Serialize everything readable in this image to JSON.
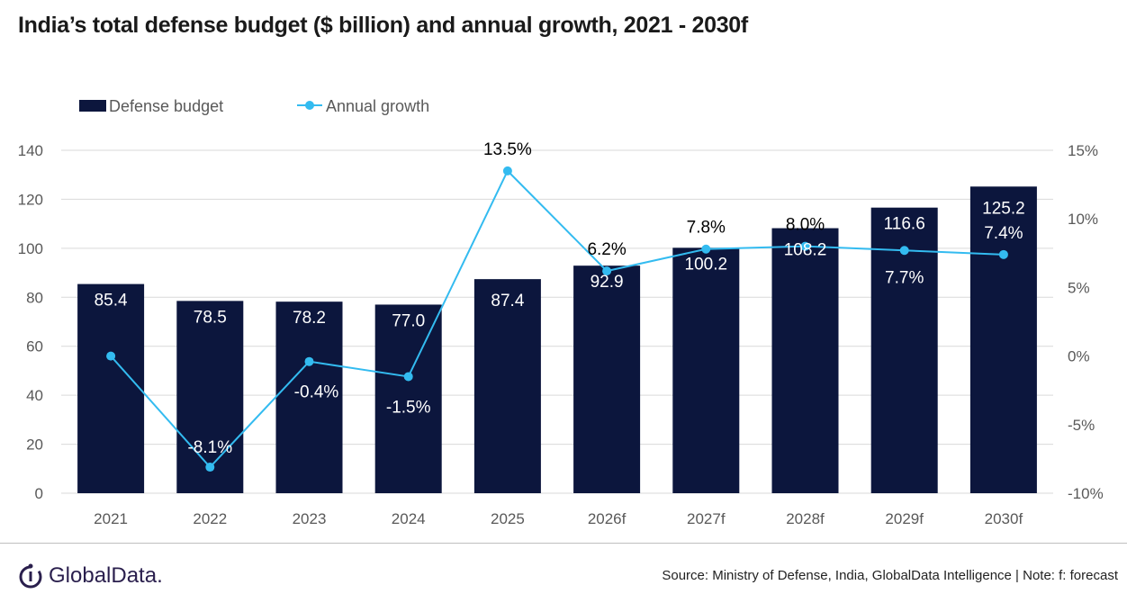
{
  "title": "India’s total defense budget ($ billion) and annual growth, 2021 - 2030f",
  "footer": {
    "logo_text": "GlobalData.",
    "source": "Source: Ministry of Defense, India, GlobalData Intelligence | Note: f: forecast"
  },
  "colors": {
    "bar": "#0c163d",
    "line": "#33bbf0",
    "grid": "#d9d9d9",
    "axis_text": "#595959"
  },
  "chart_data": {
    "type": "bar+line",
    "title": "India’s total defense budget ($ billion) and annual growth, 2021 - 2030f",
    "categories": [
      "2021",
      "2022",
      "2023",
      "2024",
      "2025",
      "2026f",
      "2027f",
      "2028f",
      "2029f",
      "2030f"
    ],
    "series": [
      {
        "name": "Defense budget",
        "type": "bar",
        "axis": "left",
        "values": [
          85.4,
          78.5,
          78.2,
          77.0,
          87.4,
          92.9,
          100.2,
          108.2,
          116.6,
          125.2
        ],
        "labels": [
          "85.4",
          "78.5",
          "78.2",
          "77.0",
          "87.4",
          "92.9",
          "100.2",
          "108.2",
          "116.6",
          "125.2"
        ]
      },
      {
        "name": "Annual growth",
        "type": "line",
        "axis": "right",
        "values": [
          0.0,
          -8.1,
          -0.4,
          -1.5,
          13.5,
          6.2,
          7.8,
          8.0,
          7.7,
          7.4
        ],
        "labels": [
          "",
          "-8.1%",
          "-0.4%",
          "-1.5%",
          "13.5%",
          "6.2%",
          "7.8%",
          "8.0%",
          "7.7%",
          "7.4%"
        ]
      }
    ],
    "left_axis": {
      "min": 0,
      "max": 140,
      "ticks": [
        "0",
        "20",
        "40",
        "60",
        "80",
        "100",
        "120",
        "140"
      ]
    },
    "right_axis": {
      "min": -10,
      "max": 15,
      "ticks": [
        "-10%",
        "-5%",
        "0%",
        "5%",
        "10%",
        "15%"
      ]
    },
    "grid": true,
    "legend": "top-left"
  }
}
